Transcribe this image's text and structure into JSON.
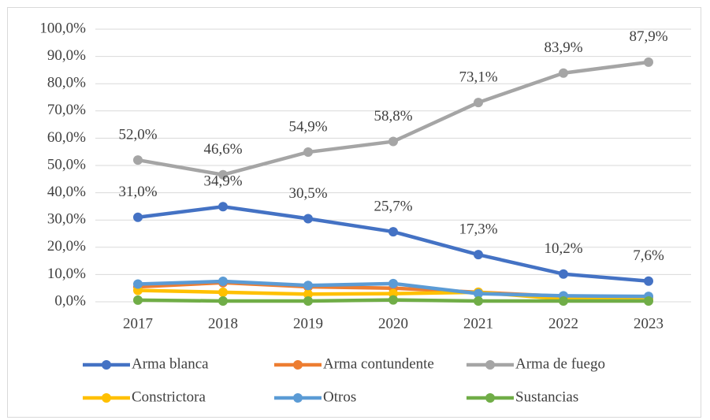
{
  "chart_data": {
    "type": "line",
    "categories": [
      "2017",
      "2018",
      "2019",
      "2020",
      "2021",
      "2022",
      "2023"
    ],
    "series": [
      {
        "name": "Arma blanca",
        "color": "#4472c4",
        "values": [
          31.0,
          34.9,
          30.5,
          25.7,
          17.3,
          10.2,
          7.6
        ],
        "value_labels": [
          "31,0%",
          "34,9%",
          "30,5%",
          "25,7%",
          "17,3%",
          "10,2%",
          "7,6%"
        ]
      },
      {
        "name": "Arma contundente",
        "color": "#ed7d31",
        "values": [
          5.5,
          7.0,
          5.5,
          5.0,
          3.5,
          2.0,
          1.5
        ]
      },
      {
        "name": "Arma de fuego",
        "color": "#a5a5a5",
        "values": [
          52.0,
          46.6,
          54.9,
          58.8,
          73.1,
          83.9,
          87.9
        ],
        "value_labels": [
          "52,0%",
          "46,6%",
          "54,9%",
          "58,8%",
          "73,1%",
          "83,9%",
          "87,9%"
        ]
      },
      {
        "name": "Constrictora",
        "color": "#ffc000",
        "values": [
          4.2,
          3.5,
          2.8,
          3.0,
          3.5,
          1.0,
          1.0
        ]
      },
      {
        "name": "Otros",
        "color": "#5b9bd5",
        "values": [
          6.5,
          7.5,
          6.0,
          6.7,
          3.0,
          2.2,
          2.0
        ]
      },
      {
        "name": "Sustancias",
        "color": "#70ad47",
        "values": [
          0.6,
          0.3,
          0.3,
          0.7,
          0.3,
          0.3,
          0.3
        ]
      }
    ],
    "ylim": [
      0,
      100
    ],
    "yticks": [
      {
        "value": 0,
        "label": "0,0%"
      },
      {
        "value": 10,
        "label": "10,0%"
      },
      {
        "value": 20,
        "label": "20,0%"
      },
      {
        "value": 30,
        "label": "30,0%"
      },
      {
        "value": 40,
        "label": "40,0%"
      },
      {
        "value": 50,
        "label": "50,0%"
      },
      {
        "value": 60,
        "label": "60,0%"
      },
      {
        "value": 70,
        "label": "70,0%"
      },
      {
        "value": 80,
        "label": "80,0%"
      },
      {
        "value": 90,
        "label": "90,0%"
      },
      {
        "value": 100,
        "label": "100,0%"
      }
    ],
    "grid": true,
    "legend": "bottom"
  }
}
